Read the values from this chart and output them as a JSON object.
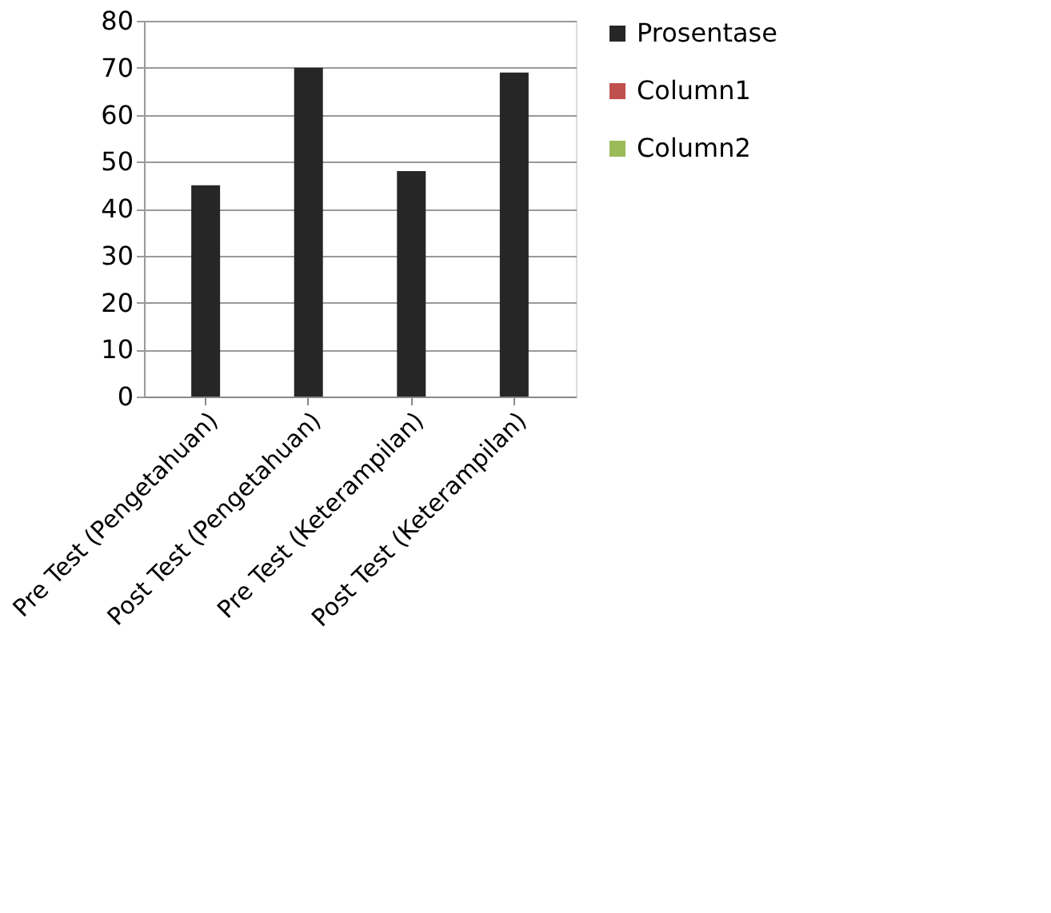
{
  "chart_data": {
    "type": "bar",
    "categories": [
      "Pre Test (Pengetahuan)",
      "Post Test (Pengetahuan)",
      "Pre Test (Keterampilan)",
      "Post Test (Keterampilan)"
    ],
    "series": [
      {
        "name": "Prosentase",
        "color": "#262626",
        "values": [
          45,
          70,
          48,
          69
        ]
      },
      {
        "name": "Column1",
        "color": "#c0504d",
        "values": [
          null,
          null,
          null,
          null
        ]
      },
      {
        "name": "Column2",
        "color": "#9bbb59",
        "values": [
          null,
          null,
          null,
          null
        ]
      }
    ],
    "ylim": [
      0,
      80
    ],
    "yticks": [
      0,
      10,
      20,
      30,
      40,
      50,
      60,
      70,
      80
    ],
    "grid": "y",
    "legend": "right"
  }
}
